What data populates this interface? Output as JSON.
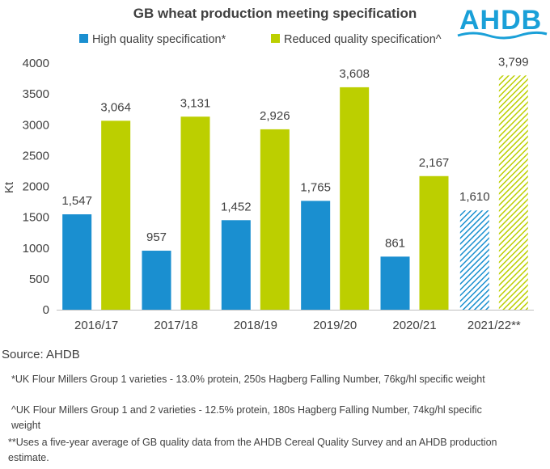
{
  "logo_text": "AHDB",
  "chart_data": {
    "type": "bar",
    "title": "GB wheat production meeting specification",
    "ylabel": "Kt",
    "xlabel": "",
    "ylim": [
      0,
      4000
    ],
    "yticks": [
      0,
      500,
      1000,
      1500,
      2000,
      2500,
      3000,
      3500,
      4000
    ],
    "categories": [
      "2016/17",
      "2017/18",
      "2018/19",
      "2019/20",
      "2020/21",
      "2021/22**"
    ],
    "series": [
      {
        "name": "High quality specification*",
        "color": "#1a8fd0",
        "values": [
          1547,
          957,
          1452,
          1765,
          861,
          1610
        ],
        "labels": [
          "1,547",
          "957",
          "1,452",
          "1,765",
          "861",
          "1,610"
        ]
      },
      {
        "name": "Reduced quality specification^",
        "color": "#bccf00",
        "values": [
          3064,
          3131,
          2926,
          3608,
          2167,
          3799
        ],
        "labels": [
          "3,064",
          "3,131",
          "2,926",
          "3,608",
          "2,167",
          "3,799"
        ]
      }
    ],
    "hatched_categories": [
      "2021/22**"
    ],
    "legend_position": "top"
  },
  "source": "Source: AHDB",
  "notes": [
    "*UK Flour Millers Group 1 varieties -  13.0% protein, 250s Hagberg Falling Number, 76kg/hl specific weight",
    "^UK Flour Millers Group 1 and 2 varieties - 12.5% protein, 180s Hagberg Falling Number, 74kg/hl specific weight",
    "**Uses a five-year average of GB quality data from the AHDB Cereal Quality Survey and an AHDB production estimate."
  ]
}
